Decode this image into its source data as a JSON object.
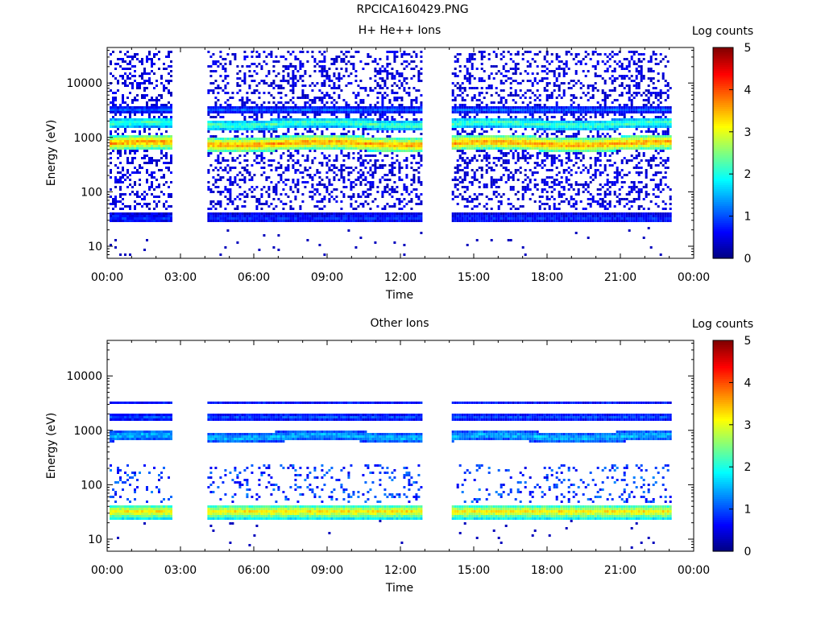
{
  "page": {
    "title": "RPCICA160429.PNG"
  },
  "chart_data": [
    {
      "type": "heatmap",
      "title": "H+ He++ Ions",
      "xlabel": "Time",
      "ylabel": "Energy (eV)",
      "x_ticks": [
        "00:00",
        "03:00",
        "06:00",
        "09:00",
        "12:00",
        "15:00",
        "18:00",
        "21:00",
        "00:00"
      ],
      "x_range_hours": [
        0,
        24
      ],
      "y_scale": "log",
      "y_range": [
        6,
        45000
      ],
      "y_ticks": [
        {
          "value": 10,
          "label": "10"
        },
        {
          "value": 100,
          "label": "100"
        },
        {
          "value": 1000,
          "label": "1000"
        },
        {
          "value": 10000,
          "label": "10000"
        }
      ],
      "colorbar": {
        "label": "Log counts",
        "range": [
          0,
          5
        ],
        "ticks": [
          "0",
          "1",
          "2",
          "3",
          "4",
          "5"
        ]
      },
      "data_intervals_hours": [
        [
          0.1,
          2.6
        ],
        [
          4.1,
          12.9
        ],
        [
          14.1,
          23.1
        ]
      ],
      "bands": [
        {
          "energy_low": 600,
          "energy_high": 1100,
          "log_counts": 3.7,
          "drift": true
        },
        {
          "energy_low": 1500,
          "energy_high": 2300,
          "log_counts": 2.3,
          "drift": true
        },
        {
          "energy_low": 3000,
          "energy_high": 3800,
          "log_counts": 1.1
        },
        {
          "energy_low": 28,
          "energy_high": 42,
          "log_counts": 0.8
        }
      ],
      "noise": {
        "energy_low": 50,
        "energy_high": 40000,
        "density": 0.3,
        "log_counts": 0.5
      }
    },
    {
      "type": "heatmap",
      "title": "Other Ions",
      "xlabel": "Time",
      "ylabel": "Energy (eV)",
      "x_ticks": [
        "00:00",
        "03:00",
        "06:00",
        "09:00",
        "12:00",
        "15:00",
        "18:00",
        "21:00",
        "00:00"
      ],
      "x_range_hours": [
        0,
        24
      ],
      "y_scale": "log",
      "y_range": [
        6,
        45000
      ],
      "y_ticks": [
        {
          "value": 10,
          "label": "10"
        },
        {
          "value": 100,
          "label": "100"
        },
        {
          "value": 1000,
          "label": "1000"
        },
        {
          "value": 10000,
          "label": "10000"
        }
      ],
      "colorbar": {
        "label": "Log counts",
        "range": [
          0,
          5
        ],
        "ticks": [
          "0",
          "1",
          "2",
          "3",
          "4",
          "5"
        ]
      },
      "data_intervals_hours": [
        [
          0.1,
          2.6
        ],
        [
          4.1,
          12.9
        ],
        [
          14.1,
          23.1
        ]
      ],
      "bands": [
        {
          "energy_low": 25,
          "energy_high": 45,
          "log_counts": 3.3
        },
        {
          "energy_low": 650,
          "energy_high": 1000,
          "log_counts": 1.6,
          "drift": true
        },
        {
          "energy_low": 1600,
          "energy_high": 2100,
          "log_counts": 1.0
        },
        {
          "energy_low": 3100,
          "energy_high": 3700,
          "log_counts": 0.7
        }
      ],
      "noise": {
        "energy_low": 50,
        "energy_high": 250,
        "density": 0.15,
        "log_counts": 1.0
      }
    }
  ]
}
